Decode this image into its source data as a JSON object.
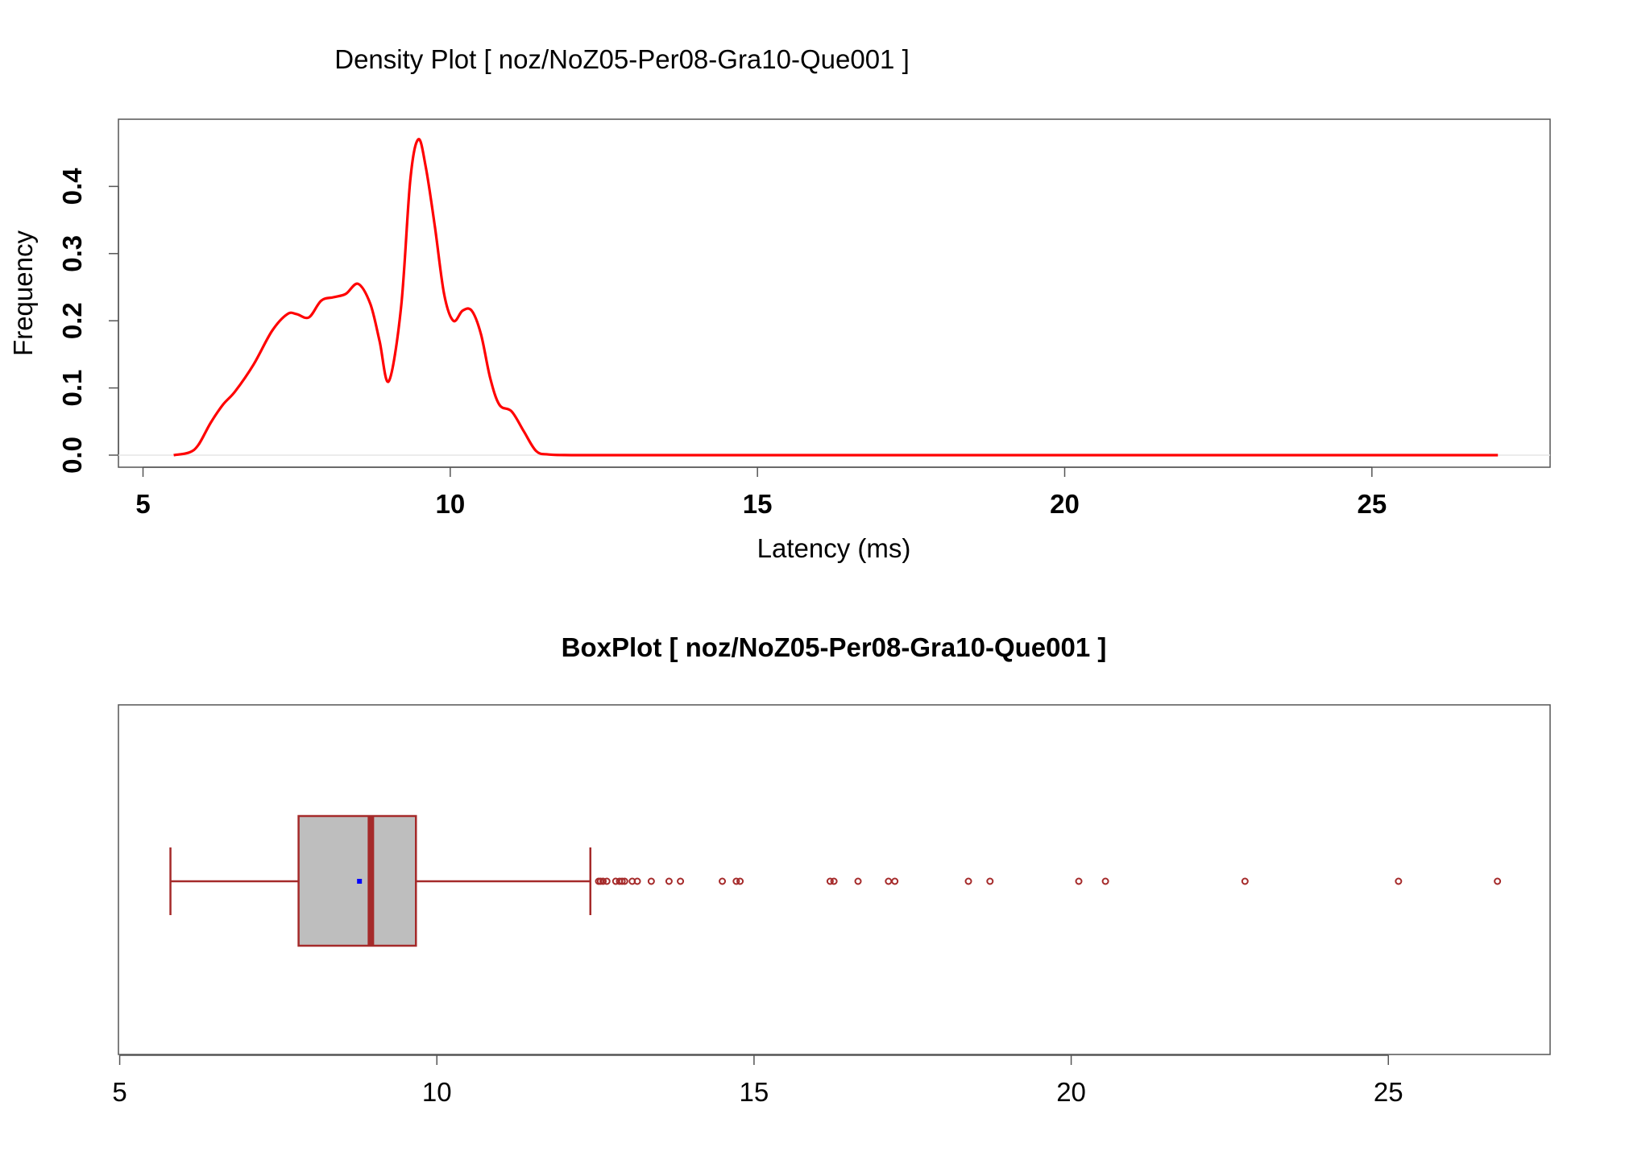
{
  "chart_data": [
    {
      "type": "line",
      "title": "Density Plot [ noz/NoZ05-Per08-Gra10-Que001 ]",
      "xlabel": "Latency (ms)",
      "ylabel": "Frequency",
      "xlim": [
        4.6,
        27.9
      ],
      "ylim": [
        -0.018,
        0.5
      ],
      "xticks": [
        5,
        10,
        15,
        20,
        25
      ],
      "yticks": [
        0.0,
        0.1,
        0.2,
        0.3,
        0.4
      ],
      "grid": false,
      "color": "#ff0000",
      "series": [
        {
          "x": [
            5.5,
            5.75,
            5.9,
            6.1,
            6.3,
            6.5,
            6.8,
            7.1,
            7.35,
            7.5,
            7.7,
            7.9,
            8.1,
            8.3,
            8.5,
            8.7,
            8.85,
            9.0,
            9.2,
            9.35,
            9.48,
            9.6,
            9.75,
            9.9,
            10.05,
            10.2,
            10.35,
            10.5,
            10.65,
            10.8,
            11.0,
            11.2,
            11.4,
            11.6,
            12.0,
            13.0,
            15.0,
            20.0,
            25.0,
            27.05
          ],
          "y": [
            0.0,
            0.004,
            0.015,
            0.048,
            0.075,
            0.095,
            0.135,
            0.185,
            0.21,
            0.21,
            0.205,
            0.23,
            0.235,
            0.24,
            0.255,
            0.225,
            0.17,
            0.11,
            0.22,
            0.41,
            0.47,
            0.43,
            0.34,
            0.24,
            0.2,
            0.215,
            0.215,
            0.18,
            0.115,
            0.075,
            0.065,
            0.035,
            0.006,
            0.001,
            0.0,
            0.0,
            0.0,
            0.0,
            0.0,
            0.0
          ]
        }
      ]
    },
    {
      "type": "box",
      "title": "BoxPlot [ noz/NoZ05-Per08-Gra10-Que001 ]",
      "xlim": [
        4.98,
        27.55
      ],
      "xticks": [
        5,
        10,
        15,
        20,
        25
      ],
      "box_fill": "#bebebe",
      "line_color": "#a52a2a",
      "mean_color": "#0000ff",
      "whisker_low": 5.8,
      "q1": 7.82,
      "median": 8.96,
      "q3": 9.67,
      "whisker_high": 12.42,
      "mean": 8.78,
      "outliers": [
        12.55,
        12.58,
        12.62,
        12.68,
        12.82,
        12.88,
        12.92,
        12.96,
        13.08,
        13.16,
        13.38,
        13.66,
        13.84,
        14.5,
        14.72,
        14.78,
        16.2,
        16.26,
        16.64,
        17.12,
        17.22,
        18.38,
        18.72,
        20.12,
        20.54,
        22.74,
        25.16,
        26.72
      ]
    }
  ]
}
